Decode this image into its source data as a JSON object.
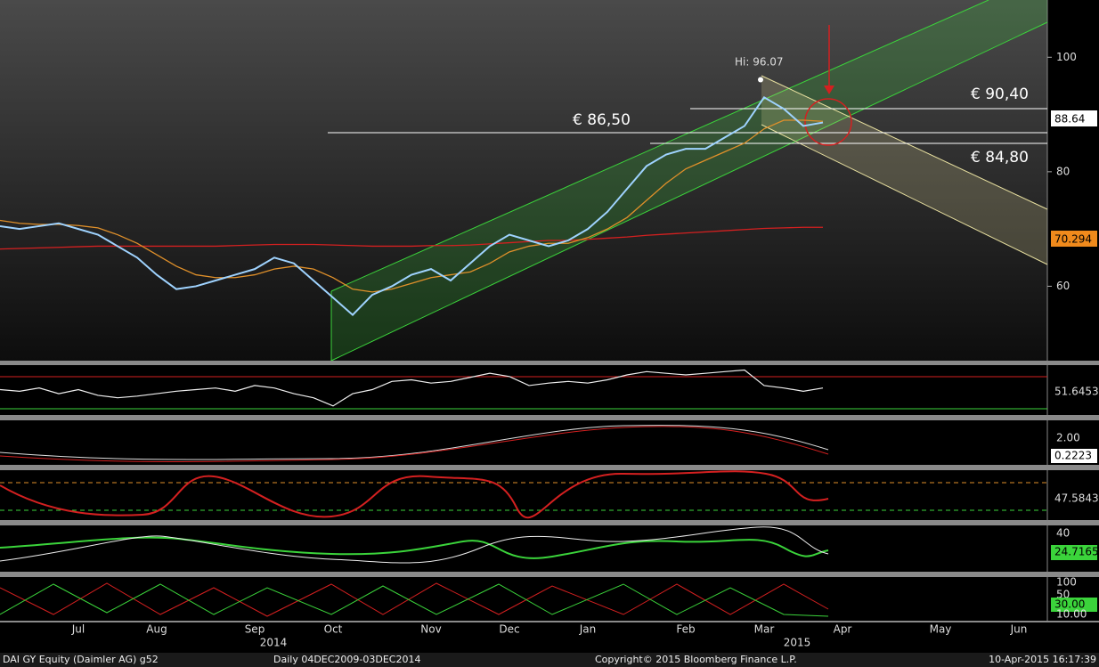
{
  "chart_data": {
    "type": "line",
    "title": "DAI GY Equity (Daimler AG) g52",
    "subtitle": "Daily 04DEC2009-03DEC2014",
    "source": "Copyright© 2015 Bloomberg Finance L.P.",
    "timestamp": "10-Apr-2015 16:17:39",
    "categories": [
      null,
      null,
      null,
      null,
      "Jul",
      null,
      null,
      null,
      "Aug",
      null,
      null,
      null,
      null,
      "Sep",
      null,
      null,
      null,
      "Oct",
      null,
      null,
      null,
      null,
      "Nov",
      null,
      null,
      null,
      "Dec",
      null,
      null,
      null,
      "Jan",
      null,
      null,
      null,
      null,
      "Feb",
      null,
      null,
      null,
      "Mar",
      null,
      null,
      null,
      "Apr",
      null,
      null,
      null,
      null,
      "May",
      null,
      null,
      null,
      "Jun"
    ],
    "years": [
      "2014",
      "2015"
    ],
    "series": [
      {
        "color": "#9fd3ff",
        "values": [
          70.5,
          70,
          70.5,
          71,
          70,
          69,
          67,
          65,
          62,
          59.5,
          60,
          61,
          62,
          63,
          65,
          64,
          61,
          58,
          55,
          58.5,
          60,
          62,
          63,
          61,
          64,
          67,
          69,
          68,
          67,
          68,
          70,
          73,
          77,
          81,
          83,
          84,
          84,
          86,
          88,
          93,
          91,
          88,
          88.6,
          null,
          null,
          null,
          null,
          null,
          null,
          null,
          null,
          null,
          null
        ]
      },
      {
        "color": "#e0902a",
        "values": [
          71.5,
          71,
          70.8,
          70.8,
          70.6,
          70.2,
          69,
          67.5,
          65.5,
          63.5,
          62,
          61.5,
          61.5,
          62,
          63,
          63.5,
          63,
          61.5,
          59.5,
          59,
          59.5,
          60.5,
          61.5,
          62,
          62.5,
          64,
          66,
          67,
          67.5,
          67.5,
          68.5,
          70,
          72,
          75,
          78,
          80.5,
          82,
          83.5,
          85,
          87.5,
          89,
          89,
          88.8,
          null,
          null,
          null,
          null,
          null,
          null,
          null,
          null,
          null,
          null
        ]
      },
      {
        "color": "#d42020",
        "values": [
          66.5,
          66.6,
          66.7,
          66.8,
          66.9,
          67,
          67,
          67,
          67,
          67,
          67,
          67,
          67.1,
          67.2,
          67.3,
          67.3,
          67.3,
          67.2,
          67.1,
          67,
          67,
          67,
          67.1,
          67.1,
          67.2,
          67.4,
          67.6,
          67.8,
          68,
          68,
          68.2,
          68.4,
          68.6,
          68.9,
          69.1,
          69.3,
          69.5,
          69.7,
          69.9,
          70.1,
          70.2,
          70.3,
          70.3,
          null,
          null,
          null,
          null,
          null,
          null,
          null,
          null,
          null,
          null
        ]
      }
    ],
    "ylim": [
      47,
      110
    ],
    "yticks": [
      60,
      80,
      100
    ],
    "annotations": {
      "high": "Hi: 96.07",
      "high_value": 96.07,
      "level1": "€ 90,40",
      "level2": "€ 86,50",
      "level3": "€ 84,80"
    },
    "last_price": "88.64",
    "ma200": "70.294",
    "rsi": {
      "values": [
        50,
        48,
        52,
        45,
        50,
        43,
        40,
        42,
        45,
        48,
        50,
        52,
        48,
        55,
        52,
        45,
        40,
        30,
        45,
        50,
        60,
        62,
        58,
        60,
        65,
        70,
        66,
        55,
        58,
        60,
        58,
        62,
        68,
        72,
        70,
        68,
        70,
        72,
        74,
        55,
        52,
        48,
        52,
        null,
        null,
        null,
        null,
        null,
        null,
        null,
        null,
        null,
        null
      ],
      "ylim": [
        20,
        80
      ],
      "last": "51.6453"
    },
    "macd": {
      "tick": "2.00",
      "last": "0.2223"
    },
    "stoch": {
      "last": "47.5843"
    },
    "dmi": {
      "tick": "40",
      "last": "24.7165"
    },
    "aroon": {
      "ticks": [
        "100",
        "50"
      ],
      "last": "30.00",
      "low": "10.00"
    }
  }
}
